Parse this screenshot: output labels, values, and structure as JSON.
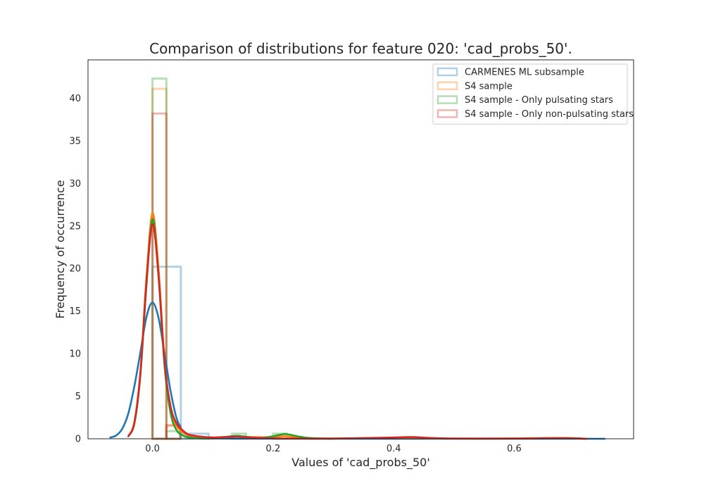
{
  "chart_data": {
    "type": "histogram+kde",
    "title": "Comparison of distributions for feature 020: 'cad_probs_50'.",
    "xlabel": "Values of 'cad_probs_50'",
    "ylabel": "Frequency of occurrence",
    "xlim": [
      -0.107,
      0.798
    ],
    "ylim": [
      0,
      44.5
    ],
    "xticks": [
      0.0,
      0.2,
      0.4,
      0.6
    ],
    "xtick_labels": [
      "0.0",
      "0.2",
      "0.4",
      "0.6"
    ],
    "yticks": [
      0,
      5,
      10,
      15,
      20,
      25,
      30,
      35,
      40
    ],
    "ytick_labels": [
      "0",
      "5",
      "10",
      "15",
      "20",
      "25",
      "30",
      "35",
      "40"
    ],
    "grid": false,
    "legend_position": "top-right",
    "series": [
      {
        "name": "CARMENES ML subsample",
        "color": "#1f77b4",
        "hist": [
          {
            "x0": 0.0,
            "x1": 0.047,
            "y": 20.2
          },
          {
            "x0": 0.047,
            "x1": 0.093,
            "y": 0.6
          }
        ],
        "kde": {
          "x": [
            -0.07,
            -0.06,
            -0.05,
            -0.04,
            -0.03,
            -0.02,
            -0.01,
            0.0,
            0.01,
            0.02,
            0.03,
            0.04,
            0.05,
            0.06,
            0.08,
            0.1,
            0.15,
            0.2,
            0.3,
            0.4,
            0.5,
            0.6,
            0.75
          ],
          "y": [
            0.15,
            0.4,
            1.2,
            3.0,
            6.2,
            10.2,
            14.3,
            16.0,
            14.2,
            10.0,
            5.6,
            2.4,
            0.9,
            0.35,
            0.1,
            0.04,
            0.02,
            0.01,
            0.0,
            0.0,
            0.0,
            0.0,
            0.0
          ]
        }
      },
      {
        "name": "S4 sample",
        "color": "#ff7f0e",
        "hist": [
          {
            "x0": 0.0,
            "x1": 0.023,
            "y": 41.1
          },
          {
            "x0": 0.023,
            "x1": 0.046,
            "y": 1.5
          }
        ],
        "kde": {
          "x": [
            -0.04,
            -0.03,
            -0.02,
            -0.01,
            0.0,
            0.01,
            0.02,
            0.03,
            0.04,
            0.05,
            0.06,
            0.08,
            0.1,
            0.12,
            0.14,
            0.16,
            0.2,
            0.22,
            0.25,
            0.3,
            0.4,
            0.43,
            0.46,
            0.6,
            0.68,
            0.72
          ],
          "y": [
            0.3,
            2.0,
            8.0,
            19.0,
            26.5,
            20.0,
            9.0,
            3.5,
            1.5,
            0.8,
            0.4,
            0.2,
            0.15,
            0.2,
            0.3,
            0.2,
            0.2,
            0.3,
            0.1,
            0.05,
            0.1,
            0.15,
            0.05,
            0.05,
            0.1,
            0.0
          ]
        }
      },
      {
        "name": "S4 sample - Only pulsating stars",
        "color": "#2ca02c",
        "hist": [
          {
            "x0": 0.0,
            "x1": 0.023,
            "y": 42.3
          },
          {
            "x0": 0.023,
            "x1": 0.046,
            "y": 0.9
          },
          {
            "x0": 0.132,
            "x1": 0.155,
            "y": 0.6
          },
          {
            "x0": 0.2,
            "x1": 0.223,
            "y": 0.6
          }
        ],
        "kde": {
          "x": [
            -0.04,
            -0.03,
            -0.02,
            -0.01,
            0.0,
            0.01,
            0.02,
            0.03,
            0.04,
            0.05,
            0.06,
            0.08,
            0.1,
            0.12,
            0.14,
            0.16,
            0.18,
            0.2,
            0.22,
            0.24,
            0.26,
            0.3
          ],
          "y": [
            0.3,
            1.8,
            7.5,
            18.0,
            25.8,
            19.0,
            8.5,
            3.0,
            1.0,
            0.4,
            0.15,
            0.05,
            0.05,
            0.2,
            0.35,
            0.2,
            0.1,
            0.3,
            0.55,
            0.3,
            0.1,
            0.0
          ]
        }
      },
      {
        "name": "S4 sample - Only non-pulsating stars",
        "color": "#d62728",
        "hist": [
          {
            "x0": 0.0,
            "x1": 0.023,
            "y": 38.2
          },
          {
            "x0": 0.023,
            "x1": 0.046,
            "y": 1.6
          }
        ],
        "kde": {
          "x": [
            -0.04,
            -0.03,
            -0.02,
            -0.01,
            0.0,
            0.01,
            0.02,
            0.03,
            0.04,
            0.05,
            0.06,
            0.08,
            0.1,
            0.12,
            0.14,
            0.16,
            0.2,
            0.25,
            0.3,
            0.4,
            0.43,
            0.46,
            0.5,
            0.6,
            0.68,
            0.72
          ],
          "y": [
            0.3,
            1.9,
            7.8,
            18.5,
            25.2,
            19.2,
            9.0,
            3.8,
            1.8,
            1.0,
            0.5,
            0.25,
            0.15,
            0.2,
            0.25,
            0.15,
            0.05,
            0.02,
            0.02,
            0.15,
            0.2,
            0.1,
            0.02,
            0.02,
            0.08,
            0.0
          ]
        }
      }
    ]
  }
}
